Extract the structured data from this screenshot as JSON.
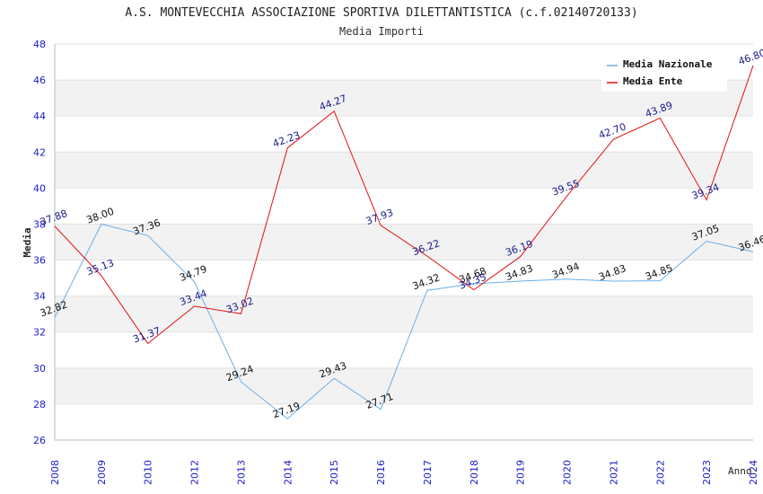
{
  "chart_data": {
    "type": "line",
    "title": "A.S. MONTEVECCHIA ASSOCIAZIONE SPORTIVA DILETTANTISTICA (c.f.02140720133)",
    "subtitle": "Media Importi",
    "xlabel": "Anno",
    "ylabel": "Media",
    "ylim": [
      26,
      48
    ],
    "yticks": [
      26,
      28,
      30,
      32,
      34,
      36,
      38,
      40,
      42,
      44,
      46,
      48
    ],
    "categories": [
      "2008",
      "2009",
      "2010",
      "2012",
      "2013",
      "2014",
      "2015",
      "2016",
      "2017",
      "2018",
      "2019",
      "2020",
      "2021",
      "2022",
      "2023",
      "2024"
    ],
    "grid": true,
    "legend_position": "top-right",
    "series": [
      {
        "name": "Media Nazionale",
        "color": "#6aaee8",
        "values": [
          32.82,
          38.0,
          37.36,
          34.79,
          29.24,
          27.19,
          29.43,
          27.71,
          34.32,
          34.68,
          34.83,
          34.94,
          34.83,
          34.85,
          37.05,
          36.46
        ],
        "labels": [
          "32.82",
          "38.00",
          "37.36",
          "34.79",
          "29.24",
          "27.19",
          "29.43",
          "27.71",
          "34.32",
          "34.68",
          "34.83",
          "34.94",
          "34.83",
          "34.85",
          "37.05",
          "36.46"
        ]
      },
      {
        "name": "Media Ente",
        "color": "#e01010",
        "values": [
          37.88,
          35.13,
          31.37,
          33.44,
          33.02,
          42.23,
          44.27,
          37.93,
          36.22,
          34.35,
          36.19,
          39.55,
          42.7,
          43.89,
          39.34,
          46.8
        ],
        "labels": [
          "37.88",
          "35.13",
          "31.37",
          "33.44",
          "33.02",
          "42.23",
          "44.27",
          "37.93",
          "36.22",
          "34.35",
          "36.19",
          "39.55",
          "42.70",
          "43.89",
          "39.34",
          "46.80"
        ]
      }
    ]
  }
}
